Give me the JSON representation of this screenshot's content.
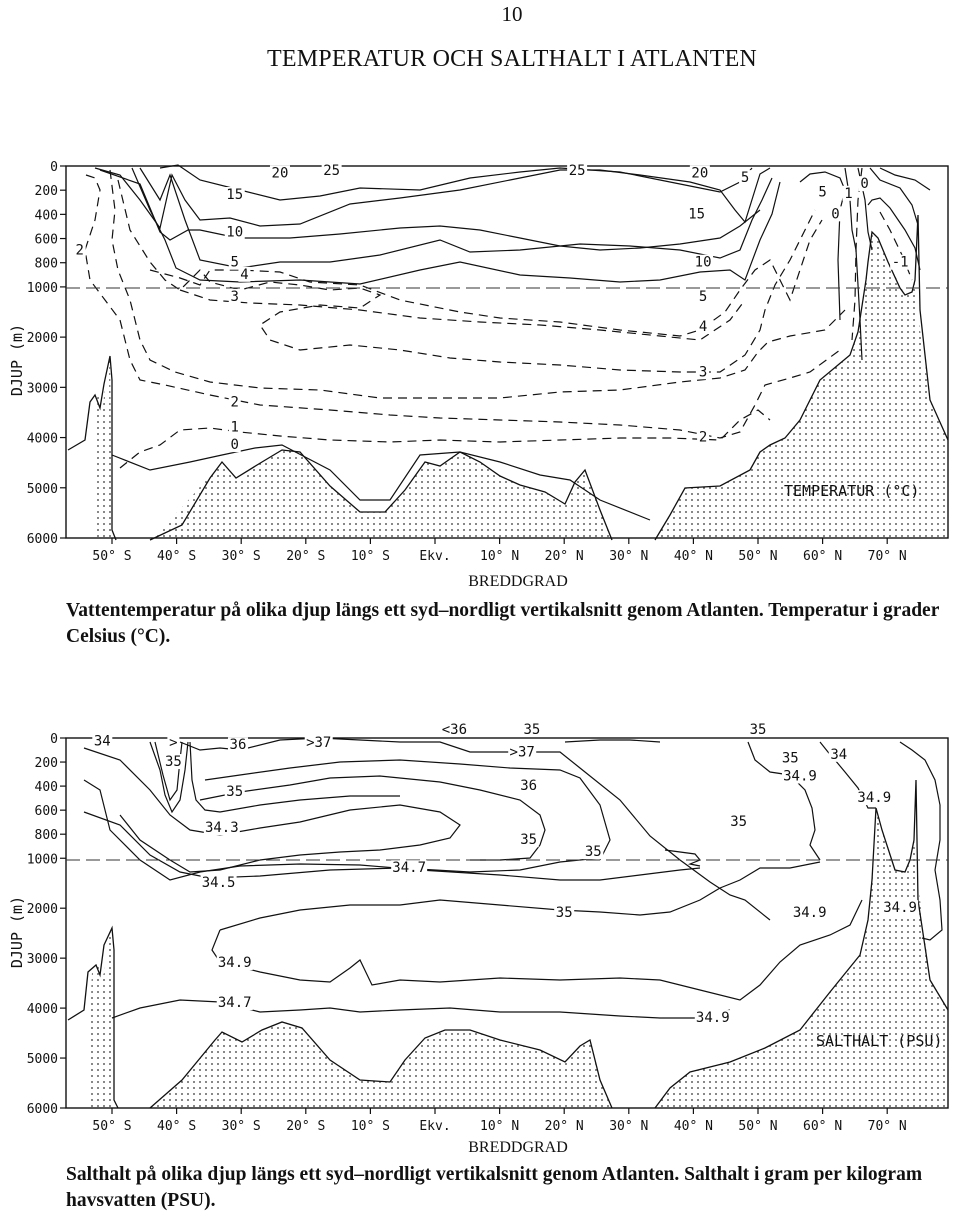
{
  "page": {
    "number": "10",
    "title": "TEMPERATUR OCH SALTHALT I ATLANTEN"
  },
  "temperature_panel": {
    "caption": "Vattentemperatur på olika djup längs ett syd–nordligt vertikalsnitt genom Atlanten. Temperatur i grader Celsius (°C).",
    "panel_label": "TEMPERATUR (°C)",
    "y_axis_label": "DJUP (m)",
    "x_axis_label": "BREDDGRAD"
  },
  "salinity_panel": {
    "caption": "Salthalt på olika djup längs ett syd–nordligt vertikalsnitt genom Atlanten. Salthalt i gram per kilogram havsvatten (PSU).",
    "panel_label": "SALTHALT (PSU)",
    "y_axis_label": "DJUP (m)",
    "x_axis_label": "BREDDGRAD"
  },
  "chart_data": [
    {
      "type": "contour",
      "id": "temperature",
      "panel_label": "TEMPERATUR (°C)",
      "xlabel": "BREDDGRAD",
      "ylabel": "DJUP (m)",
      "x_ticks": [
        "50° S",
        "40° S",
        "30° S",
        "20° S",
        "10° S",
        "Ekv.",
        "10° N",
        "20° N",
        "30° N",
        "40° N",
        "50° N",
        "60° N",
        "70° N"
      ],
      "x_tick_values": [
        -50,
        -40,
        -30,
        -20,
        -10,
        0,
        10,
        20,
        30,
        40,
        50,
        60,
        70
      ],
      "y_ticks": [
        0,
        200,
        400,
        600,
        800,
        1000,
        2000,
        3000,
        4000,
        5000,
        6000
      ],
      "reference_line_depth": 1000,
      "contour_labels": [
        {
          "text": "20",
          "lat": -24,
          "depth": 60
        },
        {
          "text": "25",
          "lat": -16,
          "depth": 40
        },
        {
          "text": "25",
          "lat": 22,
          "depth": 40
        },
        {
          "text": "20",
          "lat": 41,
          "depth": 60
        },
        {
          "text": "5",
          "lat": 48,
          "depth": 100
        },
        {
          "text": "5",
          "lat": 60,
          "depth": 220
        },
        {
          "text": "1",
          "lat": 64,
          "depth": 230
        },
        {
          "text": "0",
          "lat": 66.5,
          "depth": 150
        },
        {
          "text": "0",
          "lat": 62,
          "depth": 400
        },
        {
          "text": "2",
          "lat": -55,
          "depth": 700
        },
        {
          "text": "15",
          "lat": -31,
          "depth": 240
        },
        {
          "text": "10",
          "lat": -31,
          "depth": 550
        },
        {
          "text": "5",
          "lat": -31,
          "depth": 800
        },
        {
          "text": "4",
          "lat": -29.5,
          "depth": 900
        },
        {
          "text": "3",
          "lat": -31,
          "depth": 1200
        },
        {
          "text": "15",
          "lat": 40.5,
          "depth": 400
        },
        {
          "text": "10",
          "lat": 41.5,
          "depth": 800
        },
        {
          "text": "5",
          "lat": 41.5,
          "depth": 1200
        },
        {
          "text": "4",
          "lat": 41.5,
          "depth": 1800
        },
        {
          "text": "3",
          "lat": 41.5,
          "depth": 2700
        },
        {
          "text": "2",
          "lat": -31,
          "depth": 3300
        },
        {
          "text": "1",
          "lat": -31,
          "depth": 3800
        },
        {
          "text": "0",
          "lat": -31,
          "depth": 4150
        },
        {
          "text": "2",
          "lat": 41.5,
          "depth": 4000
        },
        {
          "text": "-1",
          "lat": 72,
          "depth": 800
        }
      ]
    },
    {
      "type": "contour",
      "id": "salinity",
      "panel_label": "SALTHALT (PSU)",
      "xlabel": "BREDDGRAD",
      "ylabel": "DJUP (m)",
      "x_ticks": [
        "50° S",
        "40° S",
        "30° S",
        "20° S",
        "10° S",
        "Ekv.",
        "10° N",
        "20° N",
        "30° N",
        "40° N",
        "50° N",
        "60° N",
        "70° N"
      ],
      "x_tick_values": [
        -50,
        -40,
        -30,
        -20,
        -10,
        0,
        10,
        20,
        30,
        40,
        50,
        60,
        70
      ],
      "y_ticks": [
        0,
        200,
        400,
        600,
        800,
        1000,
        2000,
        3000,
        4000,
        5000,
        6000
      ],
      "reference_line_depth": 1000,
      "contour_labels": [
        {
          "text": "34",
          "lat": -51.5,
          "depth": 30
        },
        {
          "text": ">",
          "lat": -40.5,
          "depth": 40
        },
        {
          "text": "35",
          "lat": -40.5,
          "depth": 200
        },
        {
          "text": "36",
          "lat": -30.5,
          "depth": 60
        },
        {
          "text": ">37",
          "lat": -18,
          "depth": 40
        },
        {
          "text": "<36",
          "lat": 3,
          "depth": -30
        },
        {
          "text": "35",
          "lat": 15,
          "depth": -30
        },
        {
          "text": ">37",
          "lat": 13.5,
          "depth": 120
        },
        {
          "text": "35",
          "lat": 50,
          "depth": -30
        },
        {
          "text": "35",
          "lat": 55,
          "depth": 170
        },
        {
          "text": "34",
          "lat": 62.5,
          "depth": 140
        },
        {
          "text": "34.9",
          "lat": 56.5,
          "depth": 320
        },
        {
          "text": "36",
          "lat": 14.5,
          "depth": 400
        },
        {
          "text": "35",
          "lat": -31,
          "depth": 450
        },
        {
          "text": "34.3",
          "lat": -33,
          "depth": 750
        },
        {
          "text": "35",
          "lat": 14.5,
          "depth": 850
        },
        {
          "text": "35",
          "lat": 47,
          "depth": 700
        },
        {
          "text": "35",
          "lat": 24.5,
          "depth": 950
        },
        {
          "text": "34.7",
          "lat": -4,
          "depth": 1200
        },
        {
          "text": "34.5",
          "lat": -33.5,
          "depth": 1500
        },
        {
          "text": "35",
          "lat": 20,
          "depth": 2100
        },
        {
          "text": "34.9",
          "lat": 68,
          "depth": 500
        },
        {
          "text": "34.9",
          "lat": 58,
          "depth": 2100
        },
        {
          "text": "34.9",
          "lat": 72,
          "depth": 2000
        },
        {
          "text": "34.9",
          "lat": -31,
          "depth": 3100
        },
        {
          "text": "34.7",
          "lat": -31,
          "depth": 3900
        },
        {
          "text": "34.9",
          "lat": 43,
          "depth": 4200
        }
      ]
    }
  ]
}
